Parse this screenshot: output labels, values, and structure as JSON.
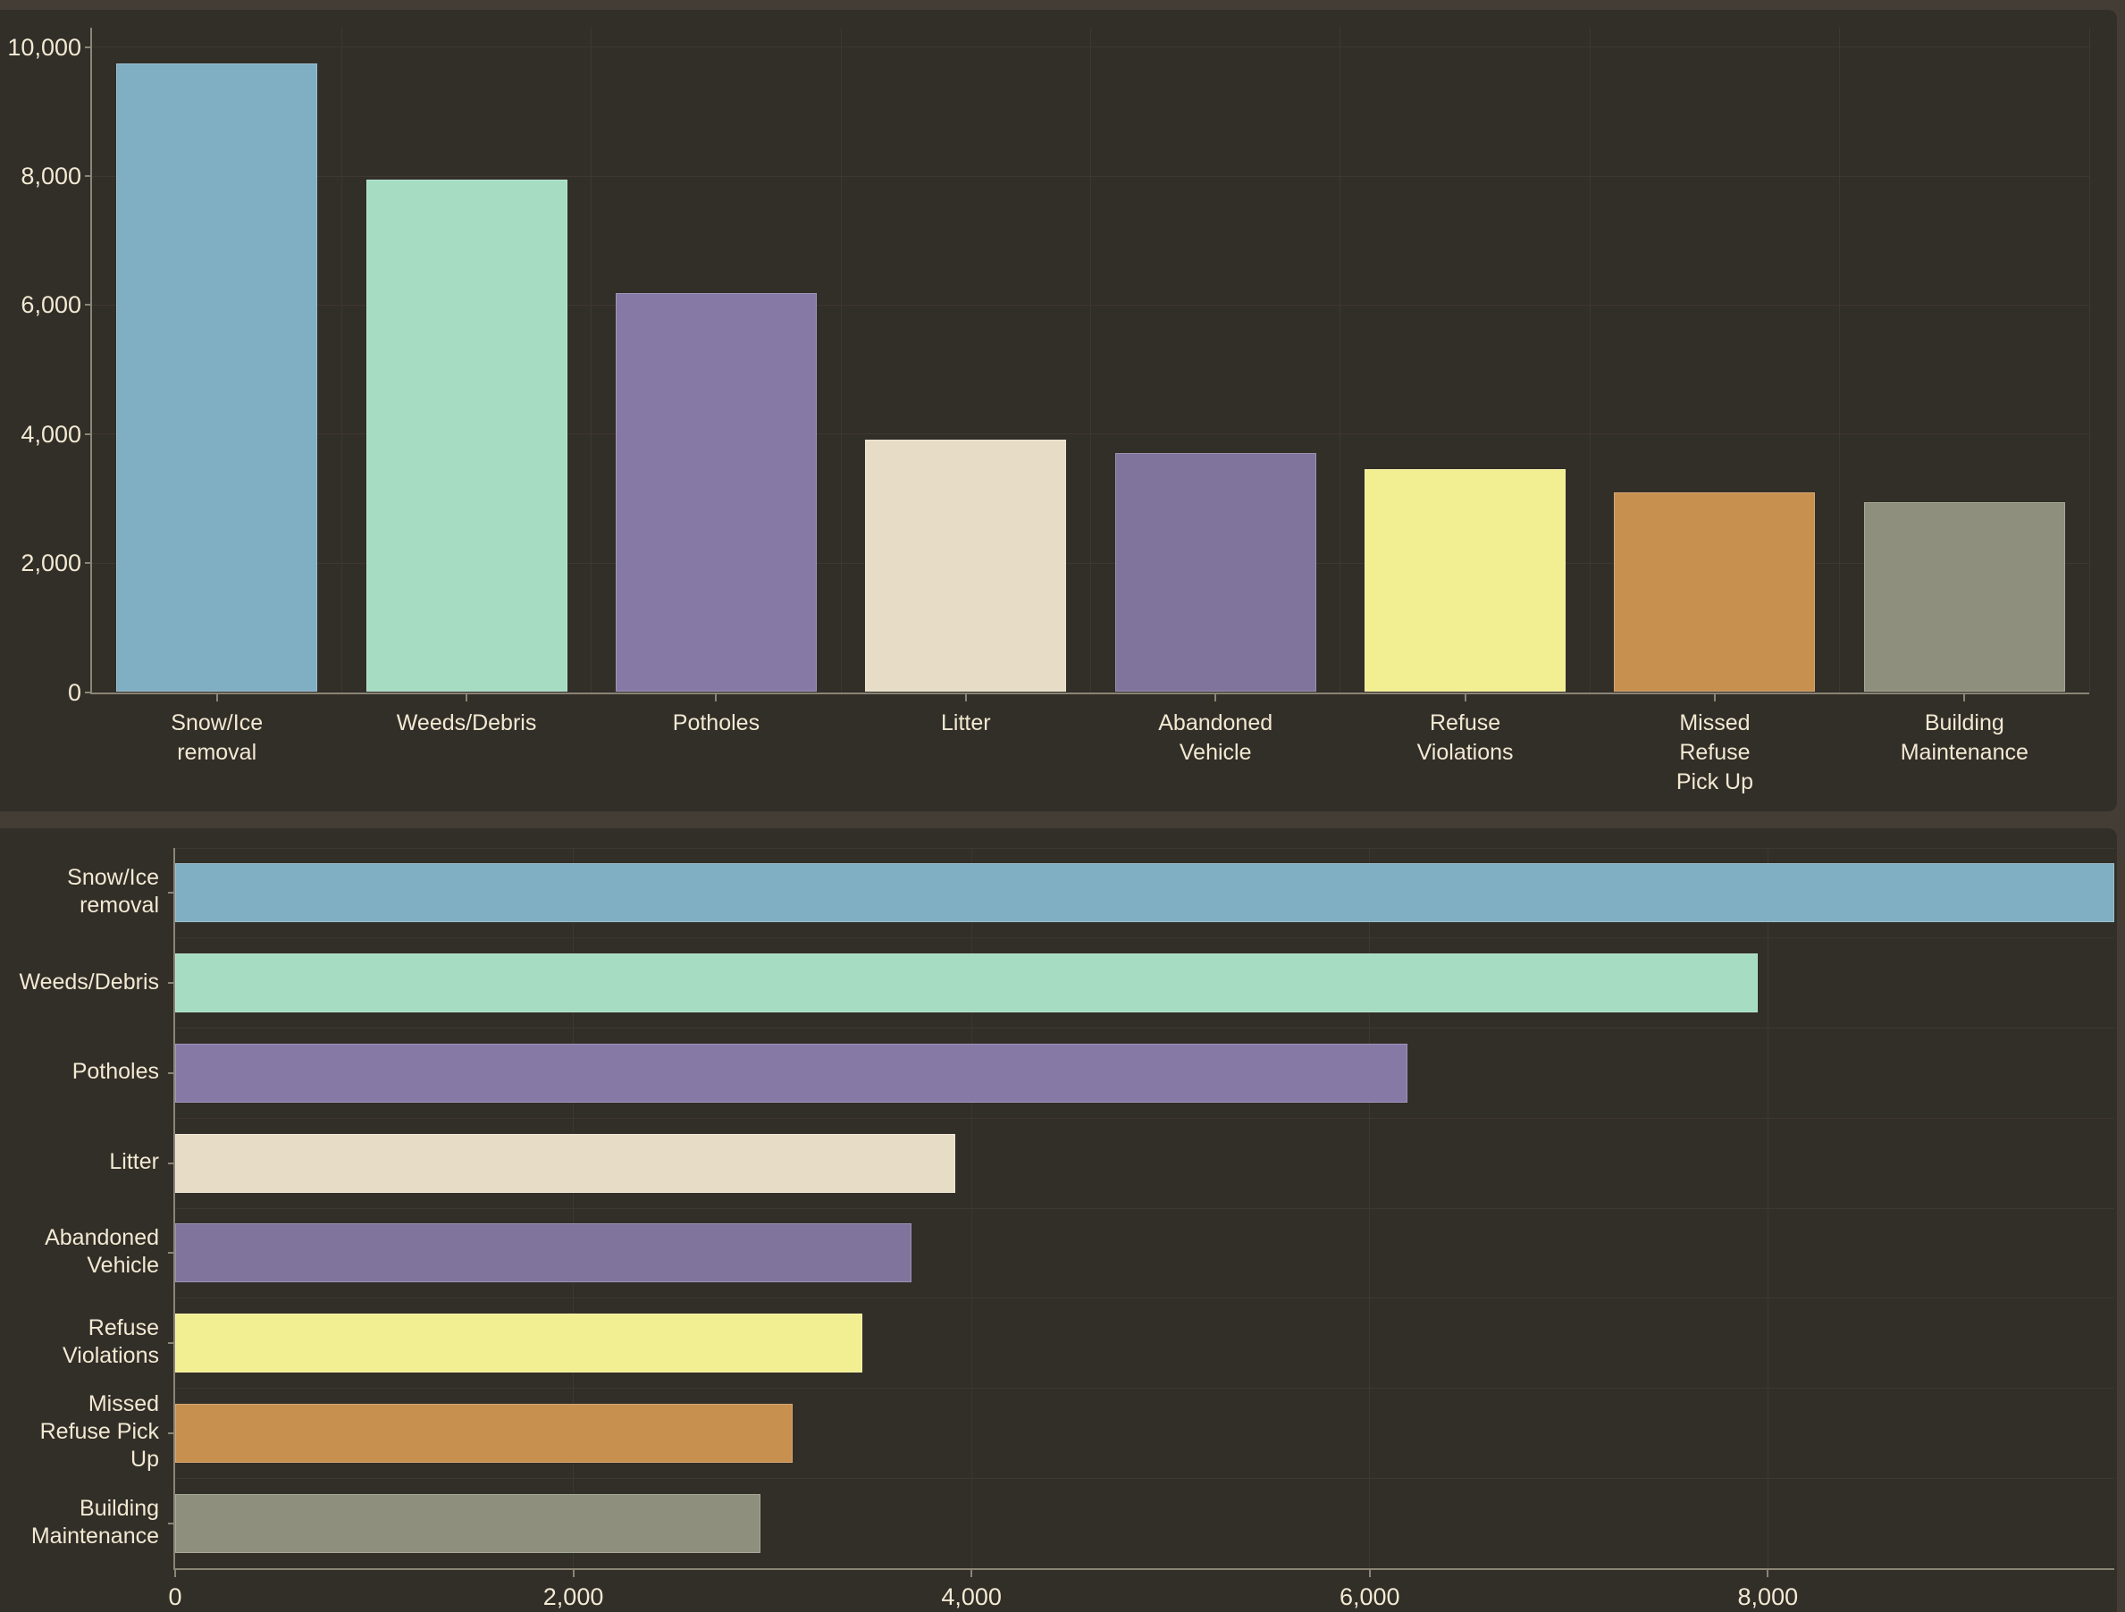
{
  "colors": {
    "page_background": "#443d35",
    "panel_background": "#322e28",
    "gridline": "#3e382f",
    "axis_line": "#8b8576",
    "text": "#f2e9d3",
    "bar_border": "rgba(255,255,255,0.22)"
  },
  "chart_data": [
    {
      "type": "bar",
      "orientation": "vertical",
      "title": "",
      "categories": [
        "Snow/Ice removal",
        "Weeds/Debris",
        "Potholes",
        "Litter",
        "Abandoned Vehicle",
        "Refuse Violations",
        "Missed Refuse Pick Up",
        "Building Maintenance"
      ],
      "category_label_lines": [
        [
          "Snow/Ice",
          "removal"
        ],
        [
          "Weeds/Debris"
        ],
        [
          "Potholes"
        ],
        [
          "Litter"
        ],
        [
          "Abandoned",
          "Vehicle"
        ],
        [
          "Refuse",
          "Violations"
        ],
        [
          "Missed",
          "Refuse",
          "Pick Up"
        ],
        [
          "Building",
          "Maintenance"
        ]
      ],
      "values": [
        9740,
        7950,
        6190,
        3920,
        3700,
        3450,
        3100,
        2940
      ],
      "bar_colors": [
        "#80aec3",
        "#a5dcc2",
        "#8679a6",
        "#e7ddc7",
        "#80749d",
        "#f2ee92",
        "#c7904f",
        "#8e907d"
      ],
      "xlabel": "",
      "ylabel": "",
      "ylim": [
        0,
        10000
      ],
      "yticks": [
        0,
        2000,
        4000,
        6000,
        8000,
        10000
      ],
      "ytick_labels": [
        "0",
        "2,000",
        "4,000",
        "6,000",
        "8,000",
        "10,000"
      ],
      "grid": true,
      "legend": false
    },
    {
      "type": "bar",
      "orientation": "horizontal",
      "title": "",
      "categories": [
        "Snow/Ice removal",
        "Weeds/Debris",
        "Potholes",
        "Litter",
        "Abandoned Vehicle",
        "Refuse Violations",
        "Missed Refuse Pick Up",
        "Building Maintenance"
      ],
      "category_label_lines": [
        [
          "Snow/Ice",
          "removal"
        ],
        [
          "Weeds/Debris"
        ],
        [
          "Potholes"
        ],
        [
          "Litter"
        ],
        [
          "Abandoned",
          "Vehicle"
        ],
        [
          "Refuse",
          "Violations"
        ],
        [
          "Missed",
          "Refuse Pick",
          "Up"
        ],
        [
          "Building",
          "Maintenance"
        ]
      ],
      "values": [
        9740,
        7950,
        6190,
        3920,
        3700,
        3450,
        3100,
        2940
      ],
      "bar_colors": [
        "#80aec3",
        "#a5dcc2",
        "#8679a6",
        "#e7ddc7",
        "#80749d",
        "#f2ee92",
        "#c7904f",
        "#8e907d"
      ],
      "xlabel": "",
      "ylabel": "",
      "xlim": [
        0,
        9740
      ],
      "xticks": [
        0,
        2000,
        4000,
        6000,
        8000
      ],
      "xtick_labels": [
        "0",
        "2,000",
        "4,000",
        "6,000",
        "8,000"
      ],
      "grid": true,
      "legend": false
    }
  ]
}
